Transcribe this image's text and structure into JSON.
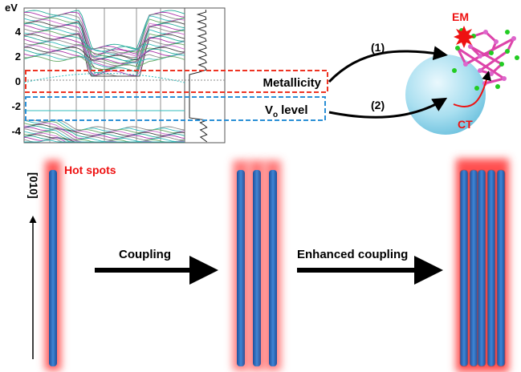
{
  "band_plot": {
    "y_label": "eV",
    "yticks": [
      "4",
      "2",
      "0",
      "-2",
      "-4"
    ]
  },
  "boxes": {
    "metallicity": "Metallicity",
    "vo_level": {
      "base": "V",
      "subscript": "o",
      "text": "level"
    }
  },
  "arrows": {
    "path_1": "(1)",
    "path_2": "(2)"
  },
  "particle": {
    "em": "EM",
    "ct": "CT"
  },
  "rods": {
    "hot_spots": "Hot spots",
    "direction": "[010]",
    "coupling": "Coupling",
    "enhanced_coupling": "Enhanced coupling"
  }
}
